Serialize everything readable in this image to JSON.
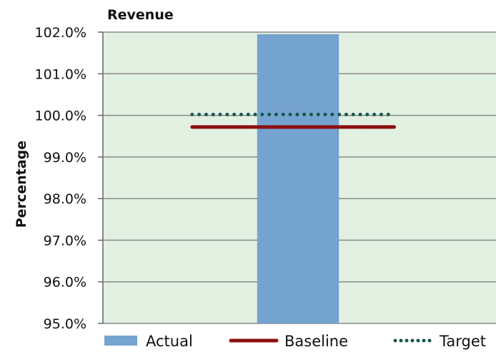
{
  "chart_data": {
    "type": "bar",
    "title": "Revenue",
    "xlabel": "",
    "ylabel": "Percentage",
    "ylim": [
      95.0,
      102.0
    ],
    "yticks": [
      "95.0%",
      "96.0%",
      "97.0%",
      "98.0%",
      "99.0%",
      "100.0%",
      "101.0%",
      "102.0%"
    ],
    "categories": [
      ""
    ],
    "series": [
      {
        "name": "Actual",
        "kind": "bar",
        "values": [
          101.95
        ],
        "color": "#75a3cf"
      },
      {
        "name": "Baseline",
        "kind": "line",
        "values": [
          99.72
        ],
        "color": "#8b0f0f"
      },
      {
        "name": "Target",
        "kind": "dotted-line",
        "values": [
          100.02
        ],
        "color": "#16584a"
      }
    ],
    "grid": true,
    "plot_background": "#e2f0e2",
    "legend_position": "bottom"
  }
}
